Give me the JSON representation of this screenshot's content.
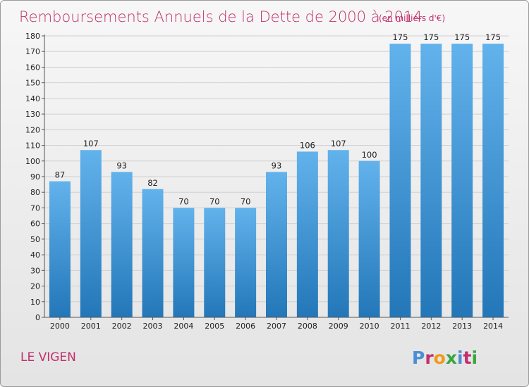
{
  "chart_data": {
    "type": "bar",
    "title": "Remboursements Annuels de la Dette de 2000 à 2014",
    "subtitle": "(en milliers d'€)",
    "categories": [
      "2000",
      "2001",
      "2002",
      "2003",
      "2004",
      "2005",
      "2006",
      "2007",
      "2008",
      "2009",
      "2010",
      "2011",
      "2012",
      "2013",
      "2014"
    ],
    "values": [
      87,
      107,
      93,
      82,
      70,
      70,
      70,
      93,
      106,
      107,
      100,
      175,
      175,
      175,
      175
    ],
    "ylim": [
      0,
      180
    ],
    "yticks": [
      0,
      10,
      20,
      30,
      40,
      50,
      60,
      70,
      80,
      90,
      100,
      110,
      120,
      130,
      140,
      150,
      160,
      170,
      180
    ],
    "xlabel": "",
    "ylabel": "",
    "grid": true
  },
  "footer": {
    "place": "LE VIGEN",
    "logo": "Proxiti"
  },
  "colors": {
    "bar_top": "#62b2ec",
    "bar_bottom": "#2377b8",
    "title": "#c0306a",
    "logo_letters": [
      "#4a8fd6",
      "#c0306a",
      "#f09a1a",
      "#3aa640",
      "#4a8fd6",
      "#c0306a",
      "#3aa640"
    ]
  }
}
